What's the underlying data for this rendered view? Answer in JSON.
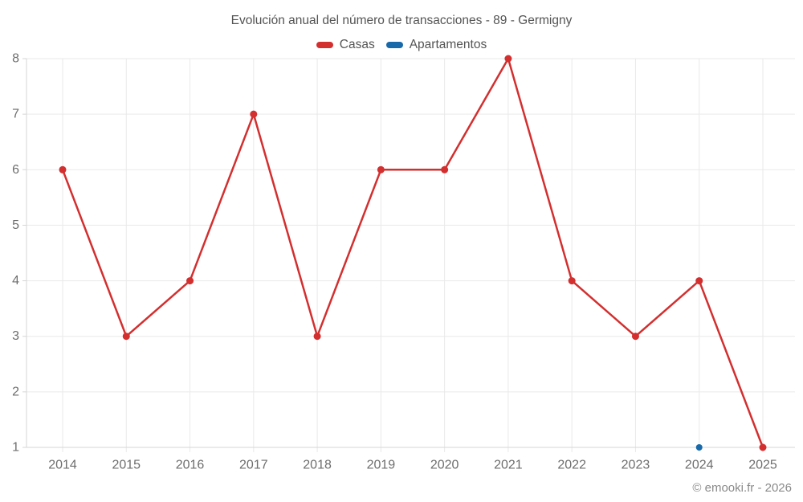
{
  "title": "Evolución anual del número de transacciones - 89 - Germigny",
  "footer": "© emooki.fr - 2026",
  "colors": {
    "casas": "#d32f2f",
    "apartamentos": "#1769aa",
    "grid": "#e9e9e9",
    "axis": "#d6d6d6",
    "tick_text": "#6e6e6e",
    "title_text": "#545454",
    "footer_text": "#8a8a8a"
  },
  "chart_data": {
    "type": "line",
    "title": "Evolución anual del número de transacciones - 89 - Germigny",
    "x": [
      2014,
      2015,
      2016,
      2017,
      2018,
      2019,
      2020,
      2021,
      2022,
      2023,
      2024,
      2025
    ],
    "series": [
      {
        "name": "Casas",
        "color": "#d32f2f",
        "point_radius": 4.5,
        "line_width": 2.5,
        "values": [
          6,
          3,
          4,
          7,
          3,
          6,
          6,
          8,
          4,
          3,
          4,
          1
        ]
      },
      {
        "name": "Apartamentos",
        "color": "#1769aa",
        "point_radius": 4,
        "line_width": 2.5,
        "values": [
          null,
          null,
          null,
          null,
          null,
          null,
          null,
          null,
          null,
          null,
          1,
          null
        ]
      }
    ],
    "ylim": [
      1,
      8
    ],
    "yticks": [
      1,
      2,
      3,
      4,
      5,
      6,
      7,
      8
    ],
    "xlabel": "",
    "ylabel": "",
    "grid": true,
    "legend_position": "top"
  }
}
